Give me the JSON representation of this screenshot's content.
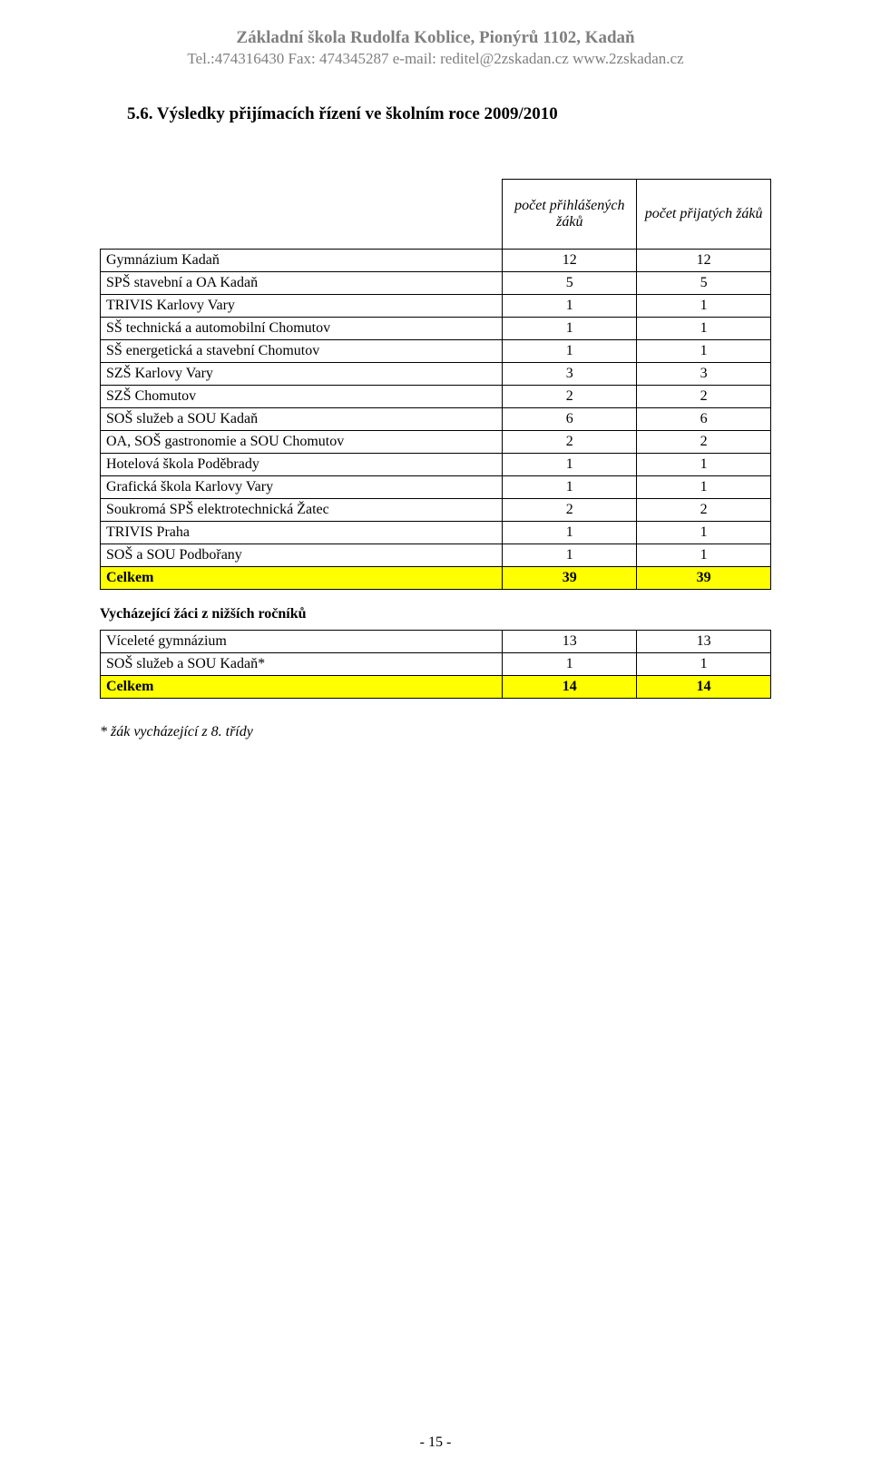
{
  "header": {
    "line1": "Základní škola Rudolfa Koblice, Pionýrů 1102, Kadaň",
    "line2": "Tel.:474316430  Fax: 474345287  e-mail: reditel@2zskadan.cz  www.2zskadan.cz"
  },
  "section_heading": "5.6. Výsledky přijímacích řízení ve školním roce 2009/2010",
  "table1": {
    "header_blank": "",
    "header_col1": "počet přihlášených žáků",
    "header_col2": "počet přijatých žáků",
    "rows": [
      {
        "label": "Gymnázium Kadaň",
        "a": "12",
        "b": "12"
      },
      {
        "label": "SPŠ stavební a OA Kadaň",
        "a": "5",
        "b": "5"
      },
      {
        "label": "TRIVIS Karlovy Vary",
        "a": "1",
        "b": "1"
      },
      {
        "label": "SŠ technická a automobilní Chomutov",
        "a": "1",
        "b": "1"
      },
      {
        "label": "SŠ energetická a stavební Chomutov",
        "a": "1",
        "b": "1"
      },
      {
        "label": "SZŠ Karlovy Vary",
        "a": "3",
        "b": "3"
      },
      {
        "label": "SZŠ Chomutov",
        "a": "2",
        "b": "2"
      },
      {
        "label": "SOŠ služeb a SOU Kadaň",
        "a": "6",
        "b": "6"
      },
      {
        "label": "OA, SOŠ gastronomie a SOU Chomutov",
        "a": "2",
        "b": "2"
      },
      {
        "label": "Hotelová škola Poděbrady",
        "a": "1",
        "b": "1"
      },
      {
        "label": "Grafická škola Karlovy Vary",
        "a": "1",
        "b": "1"
      },
      {
        "label": "Soukromá SPŠ elektrotechnická Žatec",
        "a": "2",
        "b": "2"
      },
      {
        "label": "TRIVIS Praha",
        "a": "1",
        "b": "1"
      },
      {
        "label": "SOŠ a SOU Podbořany",
        "a": "1",
        "b": "1"
      }
    ],
    "total": {
      "label": "Celkem",
      "a": "39",
      "b": "39"
    }
  },
  "subheading": "Vycházející žáci z nižších ročníků",
  "table2": {
    "rows": [
      {
        "label": "Víceleté gymnázium",
        "a": "13",
        "b": "13"
      },
      {
        "label": "SOŠ služeb a SOU Kadaň*",
        "a": "1",
        "b": "1"
      }
    ],
    "total": {
      "label": "Celkem",
      "a": "14",
      "b": "14"
    }
  },
  "footnote": "* žák vycházející z 8. třídy",
  "page_number": "- 15 -",
  "style": {
    "highlight_color": "#ffff00",
    "header_text_color": "#7f7f7f",
    "body_text_color": "#000000",
    "border_color": "#000000",
    "background_color": "#ffffff",
    "font_family": "Times New Roman"
  }
}
